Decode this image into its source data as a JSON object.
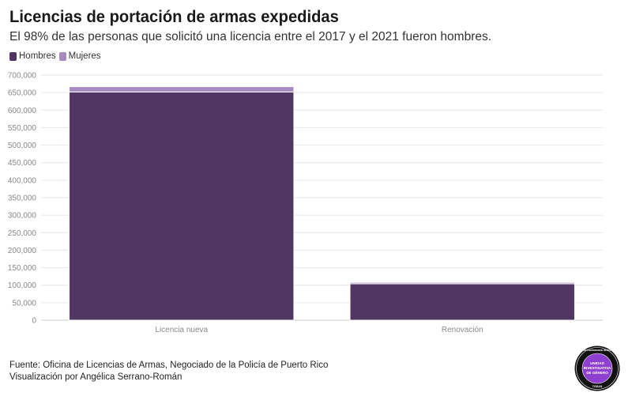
{
  "title": "Licencias de portación de armas expedidas",
  "subtitle": "El 98% de las personas que solicitó una licencia entre el 2017 y el 2021 fueron hombres.",
  "footer": {
    "source": "Fuente: Oficina de Licencias de Armas, Negociado de la Policía de Puerto Rico",
    "credit": "Visualización por Angélica Serrano-Román"
  },
  "badge": {
    "ring_text": "CENTRO DE PERIODISMO INVESTIGATIVO",
    "bottom_text": "TODAS",
    "center_lines": [
      "UNIDAD",
      "INVESTIGATIVA",
      "DE GÉNERO"
    ],
    "colors": {
      "outer": "#111111",
      "inner": "#8e3fcf"
    }
  },
  "chart_data": {
    "type": "bar",
    "stacked": true,
    "categories": [
      "Licencia nueva",
      "Renovación"
    ],
    "series": [
      {
        "name": "Hombres",
        "color": "#4f3663",
        "values": [
          652000,
          104000
        ]
      },
      {
        "name": "Mujeres",
        "color": "#a68bc2",
        "values": [
          15000,
          4000
        ]
      }
    ],
    "ylim": [
      0,
      700000
    ],
    "yticks": [
      0,
      50000,
      100000,
      150000,
      200000,
      250000,
      300000,
      350000,
      400000,
      450000,
      500000,
      550000,
      600000,
      650000,
      700000
    ],
    "ytick_labels": [
      "0",
      "50,000",
      "100,000",
      "150,000",
      "200,000",
      "250,000",
      "300,000",
      "350,000",
      "400,000",
      "450,000",
      "500,000",
      "550,000",
      "600,000",
      "650,000",
      "700,000"
    ],
    "grid": true,
    "legend": "top-left"
  }
}
